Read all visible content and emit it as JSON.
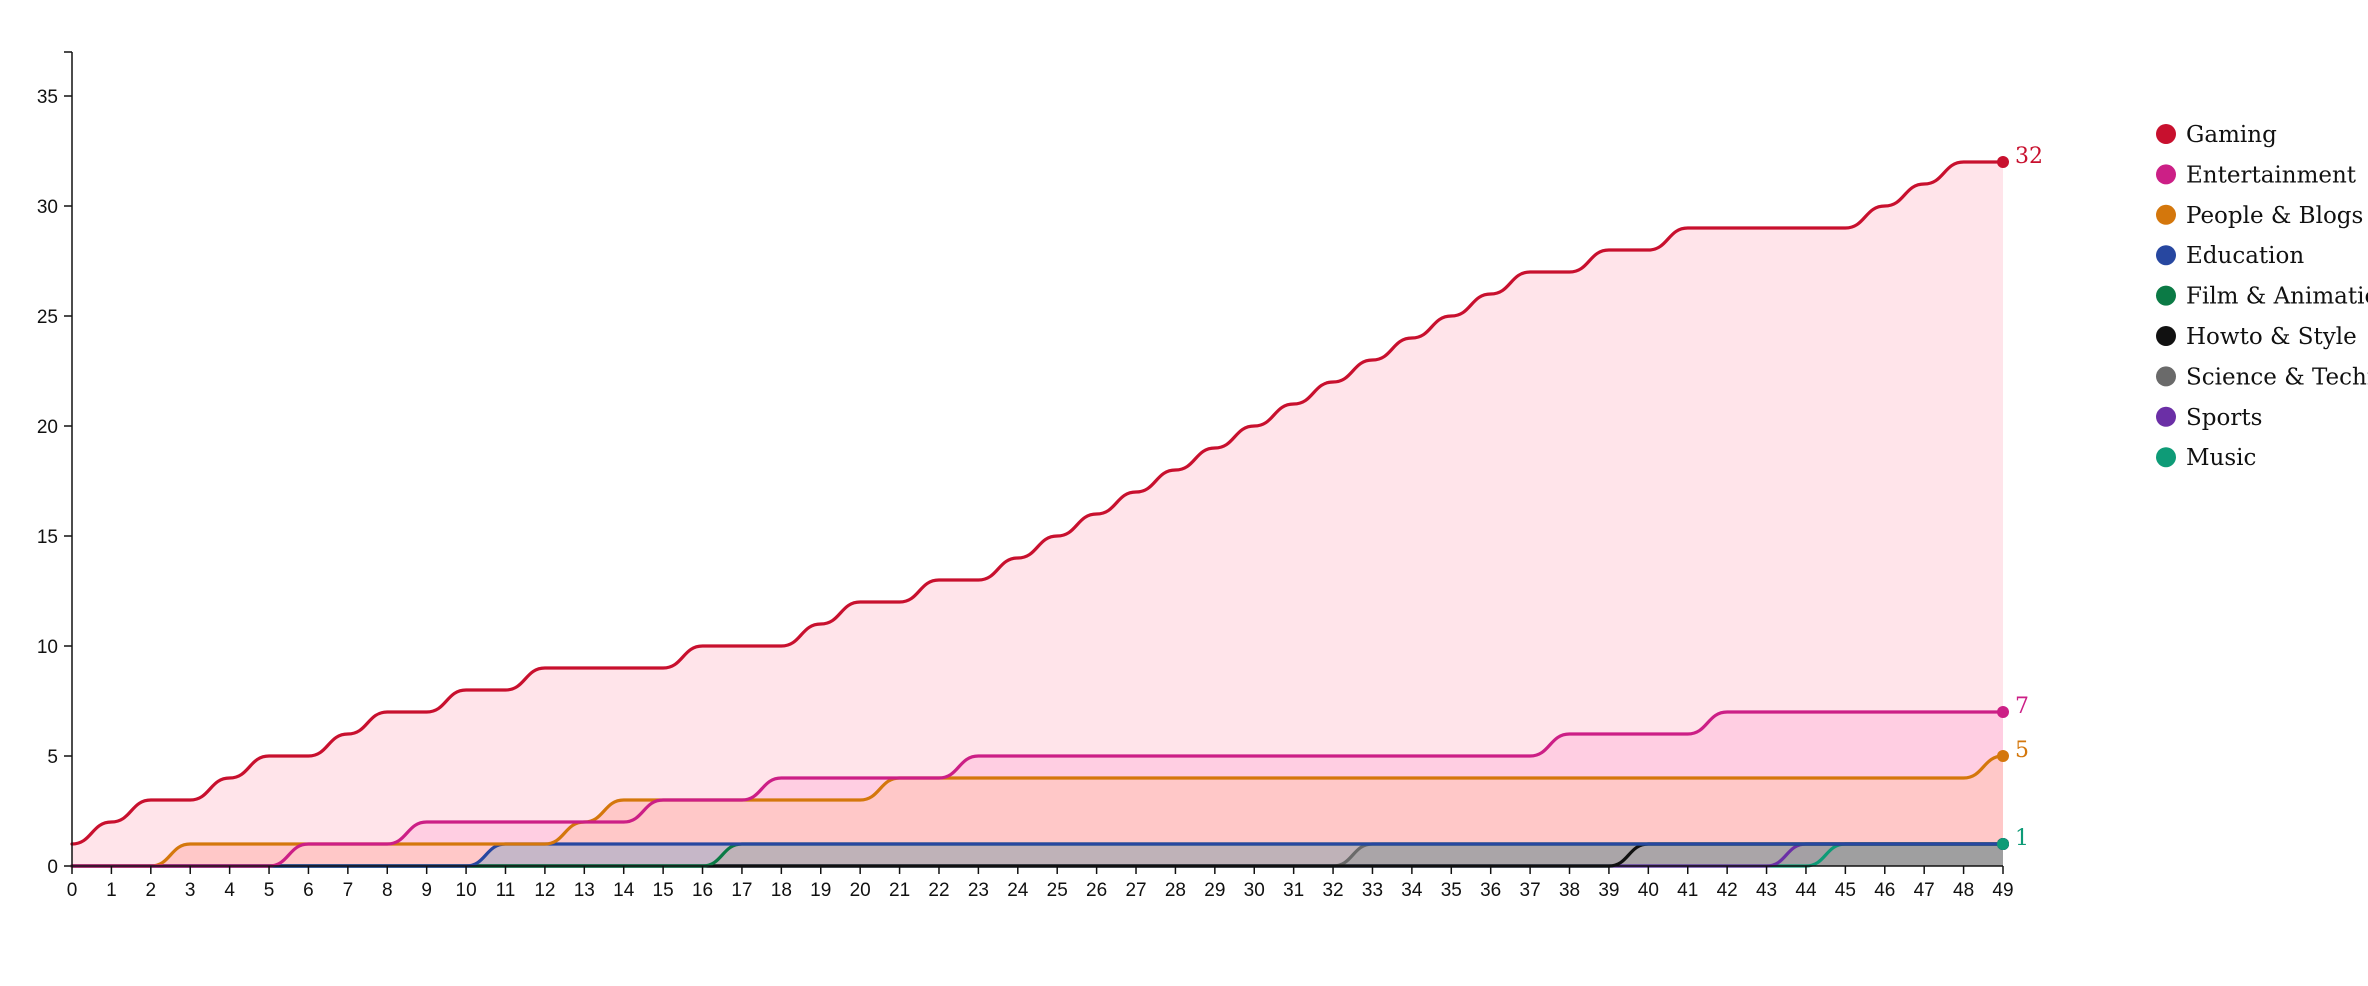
{
  "chart_data": {
    "type": "area",
    "title": "",
    "xlabel": "",
    "ylabel": "",
    "xlim": [
      0,
      49
    ],
    "ylim": [
      0,
      37
    ],
    "x_ticks": [
      "0",
      "1",
      "2",
      "3",
      "4",
      "5",
      "6",
      "7",
      "8",
      "9",
      "10",
      "11",
      "12",
      "13",
      "14",
      "15",
      "16",
      "17",
      "18",
      "19",
      "20",
      "21",
      "22",
      "23",
      "24",
      "25",
      "26",
      "27",
      "28",
      "29",
      "30",
      "31",
      "32",
      "33",
      "34",
      "35",
      "36",
      "37",
      "38",
      "39",
      "40",
      "41",
      "42",
      "43",
      "44",
      "45",
      "46",
      "47",
      "48",
      "49"
    ],
    "y_ticks": [
      "0",
      "5",
      "10",
      "15",
      "20",
      "25",
      "30",
      "35"
    ],
    "grid": false,
    "legend_position": "right",
    "legend_labels": [
      "Gaming",
      "Entertainment",
      "People & Blogs",
      "Education",
      "Film & Animatio",
      "Howto & Style",
      "Science & Techno",
      "Sports",
      "Music"
    ],
    "series": [
      {
        "name": "Gaming",
        "color": "#c8102e",
        "fill": "#ffe4ea",
        "end_label": "32",
        "values": [
          1,
          2,
          3,
          3,
          4,
          5,
          5,
          6,
          7,
          7,
          8,
          8,
          9,
          9,
          9,
          9,
          10,
          10,
          10,
          11,
          12,
          12,
          13,
          13,
          14,
          15,
          16,
          17,
          18,
          19,
          20,
          21,
          22,
          23,
          24,
          25,
          26,
          27,
          27,
          28,
          28,
          29,
          29,
          29,
          29,
          29,
          30,
          31,
          32,
          32
        ]
      },
      {
        "name": "Entertainment",
        "color": "#cc1f86",
        "fill": "#ffcee2",
        "end_label": "7",
        "values": [
          0,
          0,
          0,
          0,
          0,
          0,
          1,
          1,
          1,
          2,
          2,
          2,
          2,
          2,
          2,
          3,
          3,
          3,
          4,
          4,
          4,
          4,
          4,
          5,
          5,
          5,
          5,
          5,
          5,
          5,
          5,
          5,
          5,
          5,
          5,
          5,
          5,
          5,
          6,
          6,
          6,
          6,
          7,
          7,
          7,
          7,
          7,
          7,
          7,
          7
        ]
      },
      {
        "name": "People & Blogs",
        "color": "#d4770c",
        "fill": "#ffc8c8",
        "end_label": "5",
        "values": [
          0,
          0,
          0,
          1,
          1,
          1,
          1,
          1,
          1,
          1,
          1,
          1,
          1,
          2,
          3,
          3,
          3,
          3,
          3,
          3,
          3,
          4,
          4,
          4,
          4,
          4,
          4,
          4,
          4,
          4,
          4,
          4,
          4,
          4,
          4,
          4,
          4,
          4,
          4,
          4,
          4,
          4,
          4,
          4,
          4,
          4,
          4,
          4,
          4,
          5
        ]
      },
      {
        "name": "Education",
        "color": "#2747a0",
        "fill": "#c6b7c8",
        "end_label": "",
        "values": [
          0,
          0,
          0,
          0,
          0,
          0,
          0,
          0,
          0,
          0,
          0,
          1,
          1,
          1,
          1,
          1,
          1,
          1,
          1,
          1,
          1,
          1,
          1,
          1,
          1,
          1,
          1,
          1,
          1,
          1,
          1,
          1,
          1,
          1,
          1,
          1,
          1,
          1,
          1,
          1,
          1,
          1,
          1,
          1,
          1,
          1,
          1,
          1,
          1,
          1
        ]
      },
      {
        "name": "Film & Animatio",
        "color": "#0b7a45",
        "fill": "#bfb2b8",
        "end_label": "",
        "values": [
          0,
          0,
          0,
          0,
          0,
          0,
          0,
          0,
          0,
          0,
          0,
          0,
          0,
          0,
          0,
          0,
          0,
          1,
          1,
          1,
          1,
          1,
          1,
          1,
          1,
          1,
          1,
          1,
          1,
          1,
          1,
          1,
          1,
          1,
          1,
          1,
          1,
          1,
          1,
          1,
          1,
          1,
          1,
          1,
          1,
          1,
          1,
          1,
          1,
          1
        ]
      },
      {
        "name": "Howto & Style",
        "color": "#111111",
        "fill": "#b3aab0",
        "end_label": "",
        "values": [
          0,
          0,
          0,
          0,
          0,
          0,
          0,
          0,
          0,
          0,
          0,
          0,
          0,
          0,
          0,
          0,
          0,
          0,
          0,
          0,
          0,
          0,
          0,
          0,
          0,
          0,
          0,
          0,
          0,
          0,
          0,
          0,
          0,
          0,
          0,
          0,
          0,
          0,
          0,
          0,
          1,
          1,
          1,
          1,
          1,
          1,
          1,
          1,
          1,
          1
        ]
      },
      {
        "name": "Science & Techno",
        "color": "#6a6a6a",
        "fill": "#aaa5a8",
        "end_label": "",
        "values": [
          0,
          0,
          0,
          0,
          0,
          0,
          0,
          0,
          0,
          0,
          0,
          0,
          0,
          0,
          0,
          0,
          0,
          0,
          0,
          0,
          0,
          0,
          0,
          0,
          0,
          0,
          0,
          0,
          0,
          0,
          0,
          0,
          0,
          1,
          1,
          1,
          1,
          1,
          1,
          1,
          1,
          1,
          1,
          1,
          1,
          1,
          1,
          1,
          1,
          1
        ]
      },
      {
        "name": "Sports",
        "color": "#6b2fa6",
        "fill": "#a4a0a4",
        "end_label": "",
        "values": [
          0,
          0,
          0,
          0,
          0,
          0,
          0,
          0,
          0,
          0,
          0,
          0,
          0,
          0,
          0,
          0,
          0,
          0,
          0,
          0,
          0,
          0,
          0,
          0,
          0,
          0,
          0,
          0,
          0,
          0,
          0,
          0,
          0,
          0,
          0,
          0,
          0,
          0,
          0,
          0,
          0,
          0,
          0,
          0,
          1,
          1,
          1,
          1,
          1,
          1
        ]
      },
      {
        "name": "Music",
        "color": "#0e9b77",
        "fill": "#9f9fa0",
        "end_label": "1",
        "values": [
          0,
          0,
          0,
          0,
          0,
          0,
          0,
          0,
          0,
          0,
          0,
          0,
          0,
          0,
          0,
          0,
          0,
          0,
          0,
          0,
          0,
          0,
          0,
          0,
          0,
          0,
          0,
          0,
          0,
          0,
          0,
          0,
          0,
          0,
          0,
          0,
          0,
          0,
          0,
          0,
          0,
          0,
          0,
          0,
          0,
          1,
          1,
          1,
          1,
          1
        ]
      }
    ]
  }
}
